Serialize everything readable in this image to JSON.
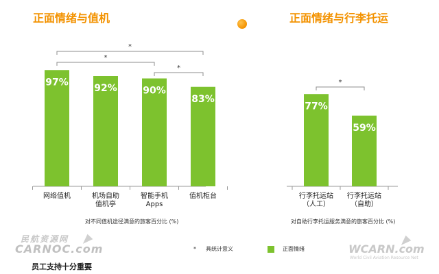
{
  "chart_data": [
    {
      "type": "bar",
      "title": "正面情绪与值机",
      "categories": [
        "网络值机",
        "机场自助\n值机亭",
        "智能手机\nApps",
        "值机柜台"
      ],
      "values": [
        97,
        92,
        90,
        83
      ],
      "value_labels": [
        "97%",
        "92%",
        "90%",
        "83%"
      ],
      "xlabel": "对不同值机途径满意的旅客百分比 (%)",
      "ylabel": "",
      "ylim": [
        0,
        100
      ],
      "color": "#7dc22e",
      "significance": [
        {
          "from": 0,
          "to": 3,
          "label": "*"
        },
        {
          "from": 0,
          "to": 2,
          "label": "*"
        },
        {
          "from": 2,
          "to": 3,
          "label": "*"
        }
      ]
    },
    {
      "type": "bar",
      "title": "正面情绪与行李托运",
      "categories": [
        "行李托运站\n（人工）",
        "行李托运站\n（自助）"
      ],
      "values": [
        77,
        59
      ],
      "value_labels": [
        "77%",
        "59%"
      ],
      "xlabel": "对自助行李托运服务满意的旅客百分比 (%)",
      "ylabel": "",
      "ylim": [
        0,
        100
      ],
      "color": "#7dc22e",
      "significance": [
        {
          "from": 0,
          "to": 1,
          "label": "*"
        }
      ]
    }
  ],
  "legend": {
    "significance_marker": "*",
    "significance_label": "具统计意义",
    "series_label": "正面情绪",
    "series_color": "#7dc22e"
  },
  "watermarks": {
    "left_cn": "民航资源网",
    "left_en": "CARNOC.com",
    "right_en": "WCARN.com",
    "right_sub": "World Civil Aviation Resource Net"
  },
  "footer": "员工支持十分重要"
}
